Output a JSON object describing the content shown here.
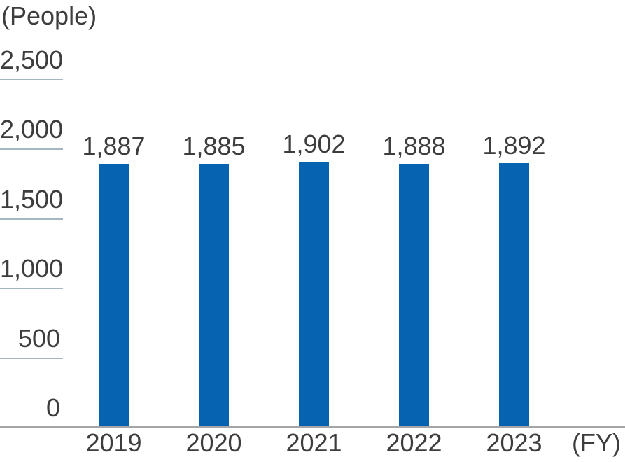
{
  "chart_data": {
    "type": "bar",
    "title": "",
    "unit_label": "(People)",
    "fy_label": "(FY)",
    "xlabel": "FY",
    "ylabel": "People",
    "categories": [
      "2019",
      "2020",
      "2021",
      "2022",
      "2023"
    ],
    "values": [
      1887,
      1885,
      1902,
      1888,
      1892
    ],
    "value_labels": [
      "1,887",
      "1,885",
      "1,902",
      "1,888",
      "1,892"
    ],
    "y_ticks": [
      0,
      500,
      1000,
      1500,
      2000,
      2500
    ],
    "y_tick_labels": [
      "0",
      "500",
      "1,000",
      "1,500",
      "2,000",
      "2,500"
    ],
    "ylim": [
      0,
      2500
    ],
    "legend_position": "none",
    "grid": "short-underline-ticks-on-y-axis",
    "colors": {
      "bar": "#0663b2",
      "text": "#3d3d3d",
      "axis_line": "#a6a6a6",
      "tick_line": "#a4b6c1",
      "background": "#ffffff"
    }
  }
}
